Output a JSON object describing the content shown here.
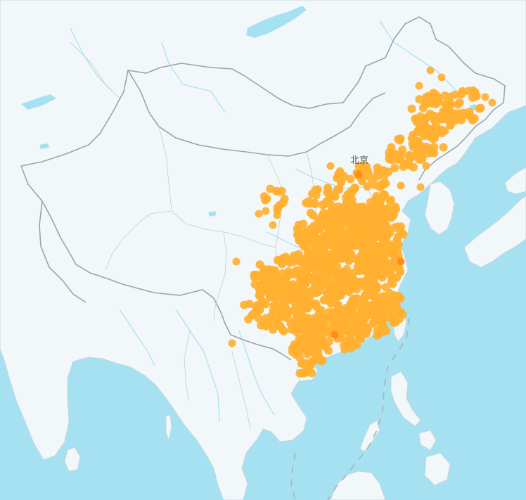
{
  "map": {
    "labels": [
      {
        "id": "beijing",
        "text": "北京"
      }
    ],
    "colors": {
      "water": "#a6e1f2",
      "land": "#f2f7fa",
      "point": "#ffb030",
      "hotspot": "#ff8a18"
    },
    "point_layer": {
      "type": "scatter",
      "description_visible": false,
      "hotspot_count": 3
    }
  }
}
